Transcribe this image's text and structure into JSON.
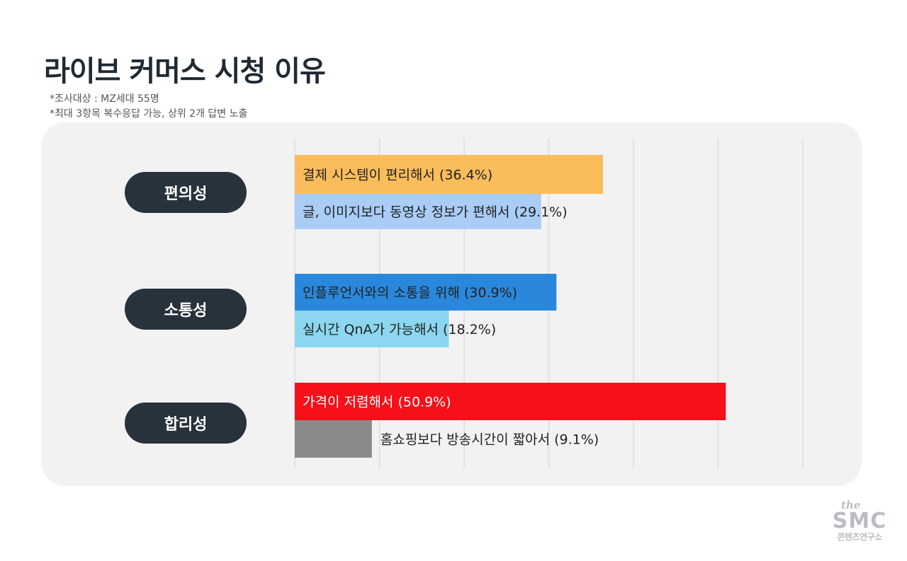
{
  "title": "라이브 커머스 시청 이유",
  "notes": [
    "*조사대상 : MZ세대 55명",
    "*최대 3항목 복수응답 가능, 상위 2개 답변 노출"
  ],
  "chart_data": {
    "type": "bar",
    "orientation": "horizontal",
    "xlim": [
      0,
      60
    ],
    "unit": "%",
    "grid": true,
    "groups": [
      {
        "label": "편의성",
        "items": [
          {
            "label": "결제 시스템이 편리해서 (36.4%)",
            "value": 36.4,
            "color": "#fbbd5c",
            "label_color": "#222222"
          },
          {
            "label": "글, 이미지보다 동영상 정보가 편해서 (29.1%)",
            "value": 29.1,
            "color": "#a9cdf5",
            "label_color": "#222222"
          }
        ]
      },
      {
        "label": "소통성",
        "items": [
          {
            "label": "인플루언서와의 소통을 위해 (30.9%)",
            "value": 30.9,
            "color": "#2a88dc",
            "label_color": "#222222"
          },
          {
            "label": "실시간 QnA가 가능해서 (18.2%)",
            "value": 18.2,
            "color": "#8cd7ef",
            "label_color": "#222222"
          }
        ]
      },
      {
        "label": "합리성",
        "items": [
          {
            "label": "가격이 저렴해서 (50.9%)",
            "value": 50.9,
            "color": "#f5101a",
            "label_color": "#ffffff"
          },
          {
            "label": "홈쇼핑보다 방송시간이 짧아서 (9.1%)",
            "value": 9.1,
            "color": "#8a8a8a",
            "label_color": "#222222",
            "label_outside": true
          }
        ]
      }
    ]
  },
  "logo": {
    "the": "the",
    "main": "SMC",
    "sub": "콘텐츠연구소"
  },
  "colors": {
    "panel_bg": "#f2f2f2",
    "pill_bg": "#28323c",
    "title": "#1f2a33",
    "grid": "#dcdcdc"
  }
}
